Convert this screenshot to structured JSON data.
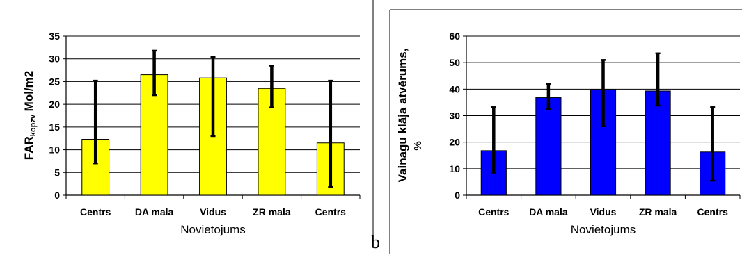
{
  "colors": {
    "left_bar": "#ffff00",
    "right_bar": "#0000ff",
    "error_bar": "#000000",
    "grid": "#000000"
  },
  "panel_label": "b",
  "chart_data": [
    {
      "type": "bar",
      "categories": [
        "Centrs",
        "DA mala",
        "Vidus",
        "ZR mala",
        "Centrs"
      ],
      "values": [
        12.3,
        26.5,
        25.8,
        23.5,
        11.5
      ],
      "error_low": [
        7.0,
        22.0,
        13.0,
        19.3,
        1.8
      ],
      "error_high": [
        25.2,
        31.8,
        30.4,
        28.5,
        25.2
      ],
      "ylim": [
        0,
        35
      ],
      "yticks": [
        0,
        5,
        10,
        15,
        20,
        25,
        30,
        35
      ],
      "xlabel": "Novietojums",
      "ylabel": {
        "main": "FAR",
        "sub": "kopzv",
        "rest": " Mol/m2"
      },
      "grid": true,
      "bar_color": "#ffff00"
    },
    {
      "type": "bar",
      "categories": [
        "Centrs",
        "DA mala",
        "Vidus",
        "ZR mala",
        "Centrs"
      ],
      "values": [
        16.8,
        36.8,
        39.8,
        39.3,
        16.3
      ],
      "error_low": [
        8.5,
        32.5,
        26.0,
        33.8,
        5.5
      ],
      "error_high": [
        33.2,
        42.0,
        51.0,
        53.5,
        33.2
      ],
      "ylim": [
        0,
        60
      ],
      "yticks": [
        0,
        10,
        20,
        30,
        40,
        50,
        60
      ],
      "xlabel": "Novietojums",
      "ylabel_lines": [
        "Vainagu klāja atvērums,",
        "%"
      ],
      "grid": true,
      "bar_color": "#0000ff"
    }
  ]
}
